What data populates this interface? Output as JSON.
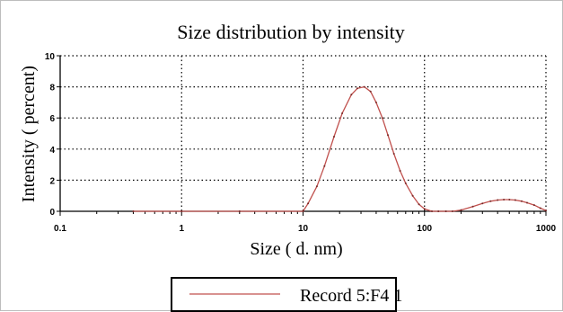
{
  "chart_data": {
    "type": "line",
    "title": "Size distribution by intensity",
    "xlabel": "Size ( d. nm)",
    "ylabel": "Intensity ( percent)",
    "x_scale": "log",
    "xlim": [
      0.1,
      1000
    ],
    "ylim": [
      0,
      10
    ],
    "x_ticks": [
      {
        "value": 0.1,
        "label": "0.1"
      },
      {
        "value": 1,
        "label": "1"
      },
      {
        "value": 10,
        "label": "10"
      },
      {
        "value": 100,
        "label": "100"
      },
      {
        "value": 1000,
        "label": "1000"
      }
    ],
    "y_ticks": [
      {
        "value": 0,
        "label": "0"
      },
      {
        "value": 2,
        "label": "2"
      },
      {
        "value": 4,
        "label": "4"
      },
      {
        "value": 6,
        "label": "6"
      },
      {
        "value": 8,
        "label": "8"
      },
      {
        "value": 10,
        "label": "10"
      }
    ],
    "grid": true,
    "legend_position": "bottom-center",
    "series": [
      {
        "name": "Record 5:F4 1",
        "color": "#c0504d",
        "x": [
          0.4,
          1,
          3,
          10,
          11,
          13,
          15,
          18,
          21,
          25,
          28,
          32,
          36,
          40,
          45,
          50,
          56,
          63,
          70,
          80,
          90,
          100,
          115,
          130,
          150,
          170,
          200,
          250,
          300,
          350,
          400,
          450,
          500,
          560,
          630,
          700,
          800,
          900,
          1000
        ],
        "y": [
          0,
          0,
          0,
          0,
          0.5,
          1.6,
          2.9,
          4.8,
          6.3,
          7.5,
          7.9,
          8.0,
          7.7,
          7.0,
          6.0,
          4.9,
          3.7,
          2.6,
          1.8,
          1.0,
          0.45,
          0.15,
          0.0,
          0.0,
          0.0,
          0.0,
          0.08,
          0.3,
          0.5,
          0.65,
          0.72,
          0.75,
          0.75,
          0.72,
          0.65,
          0.55,
          0.4,
          0.2,
          0.05
        ]
      }
    ]
  }
}
